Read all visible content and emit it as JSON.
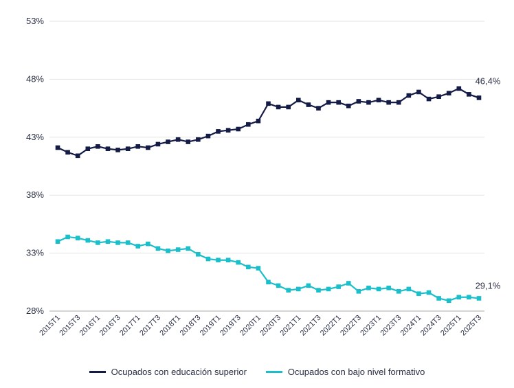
{
  "chart_data": {
    "type": "line",
    "ylim": [
      28,
      53
    ],
    "yticks": [
      "28%",
      "33%",
      "38%",
      "43%",
      "48%",
      "53%"
    ],
    "grid": true,
    "legend_position": "bottom",
    "x": [
      "2015T1",
      "2015T2",
      "2015T3",
      "2015T4",
      "2016T1",
      "2016T2",
      "2016T3",
      "2016T4",
      "2017T1",
      "2017T2",
      "2017T3",
      "2017T4",
      "2018T1",
      "2018T2",
      "2018T3",
      "2018T4",
      "2019T1",
      "2019T2",
      "2019T3",
      "2019T4",
      "2020T1",
      "2020T2",
      "2020T3",
      "2020T4",
      "2021T1",
      "2021T2",
      "2021T3",
      "2021T4",
      "2022T1",
      "2022T2",
      "2022T3",
      "2022T4",
      "2023T1",
      "2023T2",
      "2023T3",
      "2023T4",
      "2024T1",
      "2024T2",
      "2024T3",
      "2024T4",
      "2025T1",
      "2025T2",
      "2025T3"
    ],
    "xtick_labels": [
      "2015T1",
      "2015T3",
      "2016T1",
      "2016T3",
      "2017T1",
      "2017T3",
      "2018T1",
      "2018T3",
      "2019T1",
      "2019T3",
      "2020T1",
      "2020T3",
      "2021T1",
      "2021T3",
      "2022T1",
      "2022T3",
      "2023T1",
      "2023T3",
      "2024T1",
      "2024T3",
      "2025T1",
      "2025T3"
    ],
    "series": [
      {
        "name": "Ocupados con educación superior",
        "color": "#141b45",
        "end_label": "46,4%",
        "values": [
          42.1,
          41.7,
          41.4,
          42.0,
          42.2,
          42.0,
          41.9,
          42.0,
          42.2,
          42.1,
          42.4,
          42.6,
          42.8,
          42.6,
          42.8,
          43.1,
          43.5,
          43.6,
          43.7,
          44.1,
          44.4,
          45.9,
          45.6,
          45.6,
          46.2,
          45.8,
          45.5,
          46.0,
          46.0,
          45.7,
          46.1,
          46.0,
          46.2,
          46.0,
          46.0,
          46.6,
          46.9,
          46.3,
          46.5,
          46.8,
          47.2,
          46.7,
          46.4
        ]
      },
      {
        "name": "Ocupados con bajo nivel formativo",
        "color": "#1bbfcb",
        "end_label": "29,1%",
        "values": [
          34.0,
          34.4,
          34.3,
          34.1,
          33.9,
          34.0,
          33.9,
          33.9,
          33.6,
          33.8,
          33.4,
          33.2,
          33.3,
          33.4,
          32.9,
          32.5,
          32.4,
          32.4,
          32.2,
          31.8,
          31.7,
          30.5,
          30.2,
          29.8,
          29.9,
          30.2,
          29.8,
          29.9,
          30.1,
          30.4,
          29.7,
          30.0,
          29.9,
          30.0,
          29.7,
          29.9,
          29.5,
          29.6,
          29.1,
          28.9,
          29.2,
          29.2,
          29.1
        ]
      }
    ]
  }
}
